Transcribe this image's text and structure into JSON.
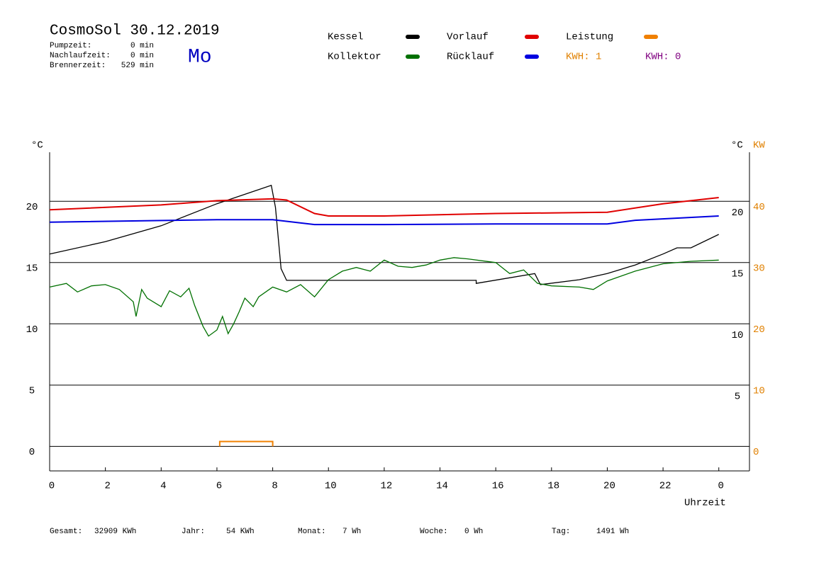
{
  "header": {
    "title": "CosmoSol 30.12.2019",
    "weekday": "Mo",
    "stats": [
      {
        "label": "Pumpzeit:",
        "value": "0 min"
      },
      {
        "label": "Nachlaufzeit:",
        "value": "0 min"
      },
      {
        "label": "Brennerzeit:",
        "value": "529 min"
      }
    ],
    "kwh": [
      {
        "text": "KWH: 1",
        "color": "#e08000"
      },
      {
        "text": "KWH: 0",
        "color": "#800080"
      }
    ]
  },
  "chart_data": {
    "type": "line",
    "y_label": "°C",
    "y_right_label": "°C",
    "y2_label": "KW",
    "x_label": "Uhrzeit",
    "xlim": [
      0,
      25.1
    ],
    "xticks": [
      0,
      2,
      4,
      6,
      8,
      10,
      12,
      14,
      16,
      18,
      20,
      22,
      {
        "value": 24,
        "label": "0"
      }
    ],
    "ylim": [
      -2,
      24
    ],
    "yticks": [
      0,
      5,
      10,
      15,
      20
    ],
    "y_right_ticks": [
      5,
      10,
      15,
      20
    ],
    "y2lim": [
      -4,
      48
    ],
    "y2ticks": [
      0,
      10,
      20,
      30,
      40
    ],
    "y2_color": "#e08000",
    "grid": true,
    "series": [
      {
        "name": "Kessel",
        "color": "#000000",
        "x": [
          0,
          2,
          4,
          6,
          7.95,
          8.1,
          8.3,
          8.5,
          15.3,
          15.3,
          17.4,
          17.6,
          19,
          20,
          21,
          22,
          22.5,
          23,
          24
        ],
        "values": [
          15.7,
          16.7,
          18.0,
          19.8,
          21.3,
          19.5,
          14.5,
          13.55,
          13.55,
          13.3,
          14.1,
          13.2,
          13.6,
          14.1,
          14.8,
          15.7,
          16.2,
          16.2,
          17.3
        ]
      },
      {
        "name": "Vorlauf",
        "color": "#e00000",
        "x": [
          0,
          4,
          6,
          8,
          8.5,
          9.5,
          10,
          12,
          16,
          20,
          22,
          24
        ],
        "values": [
          19.3,
          19.7,
          20.05,
          20.2,
          20.1,
          19.0,
          18.8,
          18.8,
          19.0,
          19.1,
          19.8,
          20.3
        ]
      },
      {
        "name": "Kollektor",
        "color": "#007000",
        "x": [
          0,
          0.6,
          1,
          1.5,
          2,
          2.5,
          3,
          3.1,
          3.3,
          3.5,
          4,
          4.3,
          4.7,
          5,
          5.2,
          5.5,
          5.7,
          6,
          6.2,
          6.4,
          6.6,
          6.8,
          7,
          7.3,
          7.5,
          8,
          8.5,
          9,
          9.5,
          10,
          10.5,
          11,
          11.5,
          12,
          12.5,
          13,
          13.5,
          14,
          14.5,
          15,
          16,
          16.5,
          17,
          17.5,
          18,
          19,
          19.5,
          20,
          21,
          22,
          23,
          24
        ],
        "values": [
          13.0,
          13.3,
          12.6,
          13.1,
          13.2,
          12.8,
          11.8,
          10.6,
          12.8,
          12.1,
          11.4,
          12.7,
          12.2,
          12.9,
          11.5,
          9.8,
          9.0,
          9.5,
          10.6,
          9.2,
          10.0,
          11.0,
          12.1,
          11.4,
          12.2,
          13.0,
          12.6,
          13.2,
          12.2,
          13.6,
          14.3,
          14.6,
          14.3,
          15.2,
          14.7,
          14.6,
          14.8,
          15.2,
          15.4,
          15.3,
          15.0,
          14.1,
          14.4,
          13.3,
          13.1,
          13.0,
          12.8,
          13.5,
          14.3,
          14.9,
          15.1,
          15.2
        ]
      },
      {
        "name": "Rücklauf",
        "color": "#0000e0",
        "x": [
          0,
          6,
          8,
          9.5,
          12,
          16,
          20,
          21,
          24
        ],
        "values": [
          18.3,
          18.5,
          18.5,
          18.1,
          18.1,
          18.15,
          18.15,
          18.45,
          18.8
        ]
      },
      {
        "name": "Leistung",
        "color": "#f08000",
        "axis": "y2",
        "x": [
          6.1,
          6.1,
          8,
          8
        ],
        "values": [
          0,
          0.8,
          0.8,
          0
        ]
      }
    ]
  },
  "footer": [
    {
      "label": "Gesamt:",
      "value": "32909 KWh"
    },
    {
      "label": "Jahr:",
      "value": "54 KWh"
    },
    {
      "label": "Monat:",
      "value": "7 Wh"
    },
    {
      "label": "Woche:",
      "value": "0 Wh"
    },
    {
      "label": "Tag:",
      "value": "1491 Wh"
    }
  ]
}
